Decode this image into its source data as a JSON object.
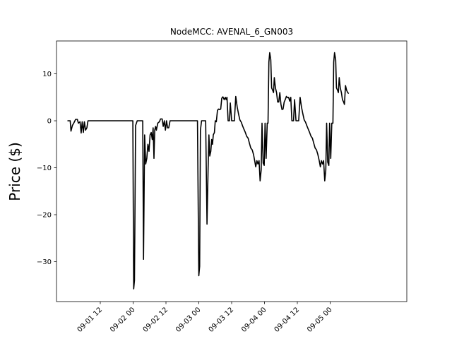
{
  "chart_data": {
    "type": "line",
    "title": "NodeMCC: AVENAL_6_GN003",
    "xlabel": "",
    "ylabel": "Price ($)",
    "x_unit": "hours from 09-01 00",
    "xlim": [
      -4,
      124
    ],
    "ylim": [
      -38.5,
      17
    ],
    "grid": false,
    "legend": "none",
    "line_color": "#000000",
    "xticks": [
      {
        "value": 12,
        "label": "09-01 12"
      },
      {
        "value": 24,
        "label": "09-02 00"
      },
      {
        "value": 36,
        "label": "09-02 12"
      },
      {
        "value": 48,
        "label": "09-03 00"
      },
      {
        "value": 60,
        "label": "09-03 12"
      },
      {
        "value": 72,
        "label": "09-04 00"
      },
      {
        "value": 84,
        "label": "09-04 12"
      },
      {
        "value": 96,
        "label": "09-05 00"
      }
    ],
    "yticks": [
      {
        "value": 10,
        "label": "10"
      },
      {
        "value": 0,
        "label": "0"
      },
      {
        "value": -10,
        "label": "−10"
      },
      {
        "value": -20,
        "label": "−20"
      },
      {
        "value": -30,
        "label": "−30"
      }
    ],
    "series": [
      {
        "name": "",
        "points": [
          [
            0,
            0
          ],
          [
            1,
            0
          ],
          [
            1.3,
            -2.2
          ],
          [
            1.8,
            -1.0
          ],
          [
            2.3,
            -0.5
          ],
          [
            3,
            0.3
          ],
          [
            3.6,
            0.3
          ],
          [
            4,
            -0.5
          ],
          [
            4.6,
            -0.2
          ],
          [
            5,
            -2.6
          ],
          [
            5.4,
            -0.2
          ],
          [
            5.8,
            -2.5
          ],
          [
            6.2,
            -0.2
          ],
          [
            6.6,
            -2.0
          ],
          [
            7.1,
            -1.5
          ],
          [
            7.5,
            0
          ],
          [
            11,
            0
          ],
          [
            16,
            0
          ],
          [
            20,
            0
          ],
          [
            23.9,
            0
          ],
          [
            24.2,
            -35.8
          ],
          [
            24.5,
            -34
          ],
          [
            24.9,
            -1
          ],
          [
            25.5,
            0
          ],
          [
            27.5,
            0
          ],
          [
            27.8,
            -29.5
          ],
          [
            28.2,
            -3
          ],
          [
            28.6,
            -9.2
          ],
          [
            29,
            -8
          ],
          [
            29.4,
            -5
          ],
          [
            29.8,
            -6.5
          ],
          [
            30.2,
            -3
          ],
          [
            30.6,
            -2.5
          ],
          [
            31,
            -4
          ],
          [
            31.3,
            -1.5
          ],
          [
            31.6,
            -8
          ],
          [
            31.9,
            -2
          ],
          [
            32.2,
            -1.2
          ],
          [
            32.5,
            -2
          ],
          [
            33,
            -0.5
          ],
          [
            33.6,
            -0.2
          ],
          [
            34,
            0.4
          ],
          [
            34.6,
            0.4
          ],
          [
            35,
            -1.2
          ],
          [
            35.4,
            0
          ],
          [
            35.8,
            -2
          ],
          [
            36.2,
            0
          ],
          [
            36.6,
            -1.5
          ],
          [
            37,
            -1.5
          ],
          [
            37.5,
            0
          ],
          [
            41,
            0
          ],
          [
            44,
            0
          ],
          [
            47.5,
            0
          ],
          [
            48,
            -33
          ],
          [
            48.3,
            -31
          ],
          [
            48.6,
            -2
          ],
          [
            49,
            0
          ],
          [
            50.5,
            0
          ],
          [
            51,
            -22
          ],
          [
            51.4,
            -10
          ],
          [
            51.7,
            -3
          ],
          [
            52,
            -7.5
          ],
          [
            52.4,
            -6.5
          ],
          [
            52.7,
            -4
          ],
          [
            53,
            -5
          ],
          [
            53.3,
            -3
          ],
          [
            53.7,
            -2.5
          ],
          [
            54,
            0
          ],
          [
            54.4,
            -0.2
          ],
          [
            54.8,
            2.2
          ],
          [
            55.2,
            2.5
          ],
          [
            55.6,
            2.4
          ],
          [
            56,
            2.5
          ],
          [
            56.4,
            4.8
          ],
          [
            56.8,
            5.1
          ],
          [
            57.3,
            4.5
          ],
          [
            57.7,
            5
          ],
          [
            58,
            4.5
          ],
          [
            58.3,
            5
          ],
          [
            58.7,
            0
          ],
          [
            59.2,
            0
          ],
          [
            59.5,
            3.8
          ],
          [
            60,
            0
          ],
          [
            61,
            0
          ],
          [
            61.5,
            5.2
          ],
          [
            62,
            3
          ],
          [
            62.5,
            1.5
          ],
          [
            63,
            0.2
          ],
          [
            63.5,
            -0.3
          ],
          [
            64,
            -1.1
          ],
          [
            64.5,
            -1.8
          ],
          [
            65,
            -2.5
          ],
          [
            65.5,
            -3.3
          ],
          [
            66,
            -3.7
          ],
          [
            66.5,
            -4.8
          ],
          [
            67,
            -5.8
          ],
          [
            67.5,
            -6.2
          ],
          [
            68,
            -7.2
          ],
          [
            68.4,
            -8.5
          ],
          [
            68.8,
            -9.8
          ],
          [
            69.2,
            -8.5
          ],
          [
            69.6,
            -9.2
          ],
          [
            70,
            -8.5
          ],
          [
            70.4,
            -12.8
          ],
          [
            70.8,
            -10.5
          ],
          [
            71.1,
            -0.5
          ],
          [
            71.5,
            -9
          ],
          [
            71.9,
            -9.5
          ],
          [
            72.2,
            -0.5
          ],
          [
            72.6,
            -8
          ],
          [
            73,
            -0.5
          ],
          [
            73.3,
            -0.5
          ],
          [
            73.6,
            12.5
          ],
          [
            73.9,
            14.5
          ],
          [
            74.3,
            13
          ],
          [
            74.6,
            7
          ],
          [
            75,
            6.5
          ],
          [
            75.3,
            6
          ],
          [
            75.6,
            9.2
          ],
          [
            76,
            7
          ],
          [
            76.4,
            6
          ],
          [
            76.8,
            4
          ],
          [
            77.2,
            4
          ],
          [
            77.6,
            6
          ],
          [
            78,
            3.5
          ],
          [
            78.4,
            2.4
          ],
          [
            78.8,
            2.5
          ],
          [
            79.2,
            4
          ],
          [
            79.6,
            4.5
          ],
          [
            80,
            5.2
          ],
          [
            80.4,
            4.9
          ],
          [
            80.8,
            5
          ],
          [
            81.2,
            4.2
          ],
          [
            81.6,
            5
          ],
          [
            82,
            0
          ],
          [
            82.6,
            0
          ],
          [
            83,
            4.5
          ],
          [
            83.5,
            0
          ],
          [
            84.5,
            0
          ],
          [
            85,
            5
          ],
          [
            85.5,
            3
          ],
          [
            86,
            1.5
          ],
          [
            86.5,
            0.2
          ],
          [
            87,
            -0.3
          ],
          [
            87.5,
            -1.1
          ],
          [
            88,
            -1.8
          ],
          [
            88.5,
            -2.5
          ],
          [
            89,
            -3.3
          ],
          [
            89.5,
            -3.7
          ],
          [
            90,
            -4.8
          ],
          [
            90.5,
            -5.8
          ],
          [
            91,
            -6.2
          ],
          [
            91.5,
            -7.2
          ],
          [
            92,
            -8.5
          ],
          [
            92.4,
            -9.8
          ],
          [
            92.8,
            -8.5
          ],
          [
            93.2,
            -9.2
          ],
          [
            93.6,
            -8.5
          ],
          [
            94,
            -12.8
          ],
          [
            94.4,
            -10.5
          ],
          [
            94.7,
            -0.5
          ],
          [
            95.1,
            -8.8
          ],
          [
            95.5,
            -9.5
          ],
          [
            95.8,
            -0.5
          ],
          [
            96.2,
            -8
          ],
          [
            96.6,
            -0.5
          ],
          [
            97,
            -0.5
          ],
          [
            97.3,
            12.5
          ],
          [
            97.6,
            14.5
          ],
          [
            98,
            13
          ],
          [
            98.3,
            7
          ],
          [
            98.7,
            6.5
          ],
          [
            99,
            6
          ],
          [
            99.3,
            9.2
          ],
          [
            99.7,
            7
          ],
          [
            100.1,
            6
          ],
          [
            100.5,
            4.5
          ],
          [
            100.9,
            4
          ],
          [
            101.2,
            3.5
          ],
          [
            101.6,
            7.5
          ],
          [
            102,
            6.5
          ],
          [
            102.4,
            6
          ],
          [
            102.8,
            5.8
          ]
        ]
      }
    ]
  }
}
